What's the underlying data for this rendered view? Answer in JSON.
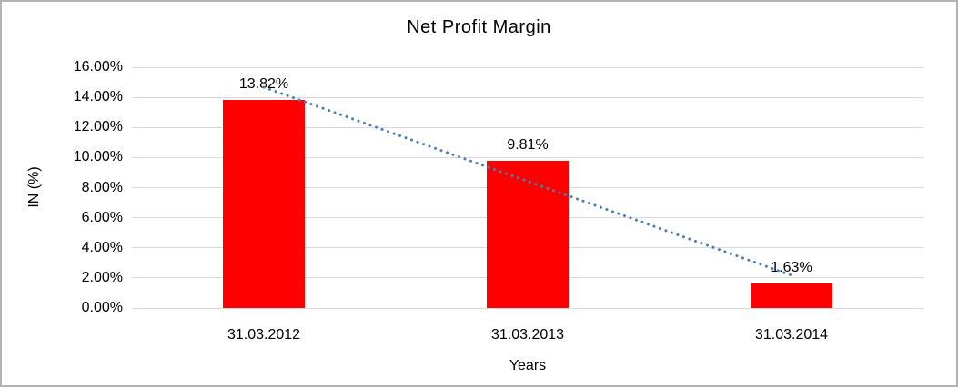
{
  "chart_data": {
    "type": "bar",
    "title": "Net Profit Margin",
    "xlabel": "Years",
    "ylabel": "IN (%)",
    "categories": [
      "31.03.2012",
      "31.03.2013",
      "31.03.2014"
    ],
    "values": [
      13.82,
      9.81,
      1.63
    ],
    "value_labels": [
      "13.82%",
      "9.81%",
      "1.63%"
    ],
    "y_ticks": [
      "0.00%",
      "2.00%",
      "4.00%",
      "6.00%",
      "8.00%",
      "10.00%",
      "12.00%",
      "14.00%",
      "16.00%"
    ],
    "ylim": [
      0,
      16
    ],
    "grid": "horizontal",
    "legend": "none",
    "bar_color": "#ff0000",
    "gridline_color": "#d9d9d9",
    "text_color": "#000000",
    "trendline": {
      "style": "dotted",
      "color": "#4a7ebb",
      "start_value": 14.67,
      "end_value": 2.17
    }
  }
}
